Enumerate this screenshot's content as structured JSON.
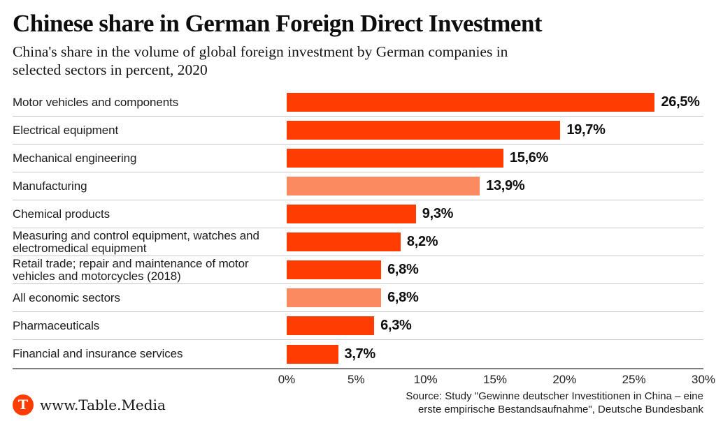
{
  "header": {
    "title": "Chinese share in German Foreign Direct Investment",
    "subtitle": "China's share in the volume of global foreign investment by German companies in selected sectors in percent, 2020",
    "subtitle_line1": "China's share in the volume of global foreign investment by German companies in",
    "subtitle_line2": "selected sectors in percent, 2020"
  },
  "chart_data": {
    "type": "bar",
    "orientation": "horizontal",
    "title": "Chinese share in German Foreign Direct Investment",
    "subtitle": "China's share in the volume of global foreign investment by German companies in selected sectors in percent, 2020",
    "unit": "percent",
    "xlim": [
      0,
      30
    ],
    "x_ticks": [
      "0%",
      "5%",
      "10%",
      "15%",
      "20%",
      "25%",
      "30%"
    ],
    "grid": false,
    "legend": false,
    "categories": [
      "Motor vehicles and components",
      "Electrical equipment",
      "Mechanical engineering",
      "Manufacturing",
      "Chemical products",
      "Measuring and control equipment, watches and electromedical equipment",
      "Retail trade; repair and maintenance of motor vehicles and motorcycles (2018)",
      "All economic sectors",
      "Pharmaceuticals",
      "Financial and insurance services"
    ],
    "values": [
      26.5,
      19.7,
      15.6,
      13.9,
      9.3,
      8.2,
      6.8,
      6.8,
      6.3,
      3.7
    ],
    "value_labels": [
      "26,5%",
      "19,7%",
      "15,6%",
      "13,9%",
      "9,3%",
      "8,2%",
      "6,8%",
      "6,8%",
      "6,3%",
      "3,7%"
    ],
    "muted": [
      false,
      false,
      false,
      true,
      false,
      false,
      false,
      true,
      false,
      false
    ],
    "colors": {
      "bar": "#FF3D03",
      "bar_muted": "#FC8A60"
    }
  },
  "footer": {
    "logo_letter": "T",
    "brand": "www.Table.Media",
    "source_line1": "Source: Study \"Gewinne deutscher Investitionen in China – eine",
    "source_line2": "erste empirische Bestandsaufnahme\", Deutsche Bundesbank"
  }
}
